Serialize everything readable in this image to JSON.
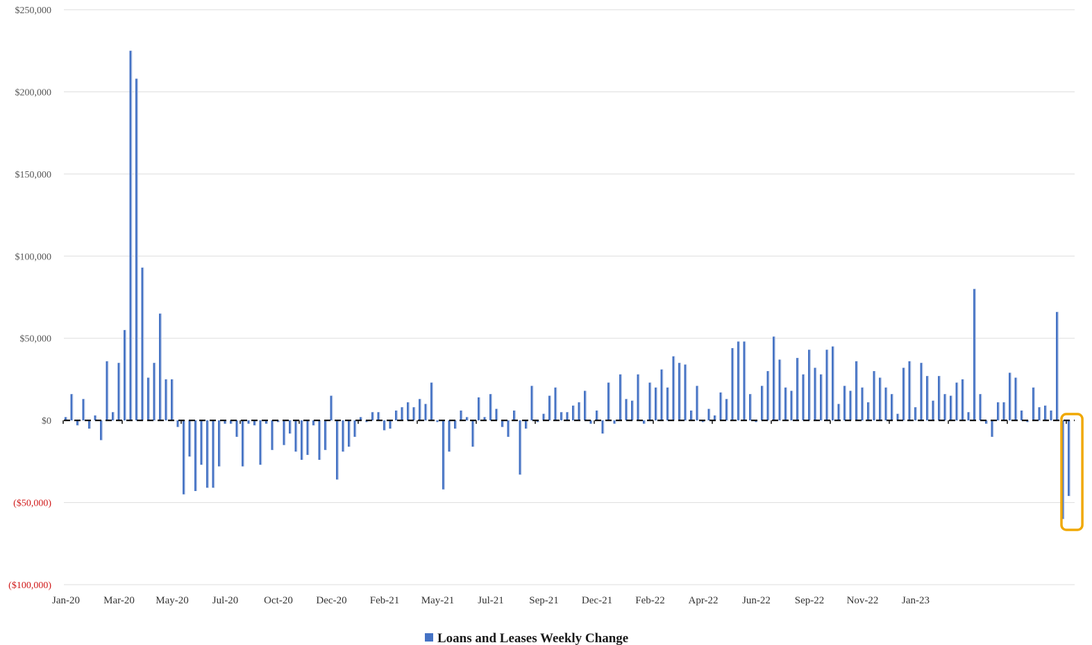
{
  "chart_data": {
    "type": "bar",
    "title": "",
    "xlabel": "",
    "ylabel": "",
    "ylim": [
      -100000,
      250000
    ],
    "y_ticks": [
      {
        "value": 250000,
        "label": "$250,000"
      },
      {
        "value": 200000,
        "label": "$200,000"
      },
      {
        "value": 150000,
        "label": "$150,000"
      },
      {
        "value": 100000,
        "label": "$100,000"
      },
      {
        "value": 50000,
        "label": "$50,000"
      },
      {
        "value": 0,
        "label": "$0"
      },
      {
        "value": -50000,
        "label": "($50,000)"
      },
      {
        "value": -100000,
        "label": "($100,000)"
      }
    ],
    "x_ticks": [
      {
        "index": 0,
        "label": "Jan-20"
      },
      {
        "index": 9,
        "label": "Mar-20"
      },
      {
        "index": 18,
        "label": "May-20"
      },
      {
        "index": 27,
        "label": "Jul-20"
      },
      {
        "index": 36,
        "label": "Oct-20"
      },
      {
        "index": 45,
        "label": "Dec-20"
      },
      {
        "index": 54,
        "label": "Feb-21"
      },
      {
        "index": 63,
        "label": "May-21"
      },
      {
        "index": 72,
        "label": "Jul-21"
      },
      {
        "index": 81,
        "label": "Sep-21"
      },
      {
        "index": 90,
        "label": "Dec-21"
      },
      {
        "index": 99,
        "label": "Feb-22"
      },
      {
        "index": 108,
        "label": "Apr-22"
      },
      {
        "index": 117,
        "label": "Jun-22"
      },
      {
        "index": 126,
        "label": "Sep-22"
      },
      {
        "index": 135,
        "label": "Nov-22"
      },
      {
        "index": 144,
        "label": "Jan-23"
      }
    ],
    "series": [
      {
        "name": "Loans and Leases Weekly Change",
        "color": "#4472c4",
        "values": [
          2000,
          16000,
          -3000,
          13000,
          -5000,
          3000,
          -12000,
          36000,
          5000,
          35000,
          55000,
          225000,
          208000,
          93000,
          26000,
          35000,
          65000,
          25000,
          25000,
          -4000,
          -45000,
          -22000,
          -43000,
          -27000,
          -41000,
          -41000,
          -28000,
          -2000,
          -2000,
          -10000,
          -28000,
          -2000,
          -3000,
          -27000,
          -2000,
          -18000,
          -1000,
          -15000,
          -8000,
          -19000,
          -24000,
          -21000,
          -3000,
          -24000,
          -18000,
          15000,
          -36000,
          -19000,
          -16000,
          -10000,
          2000,
          -1000,
          5000,
          5000,
          -6000,
          -5000,
          6000,
          8000,
          11000,
          8000,
          13000,
          10000,
          23000,
          -1000,
          -42000,
          -19000,
          -5000,
          6000,
          2000,
          -16000,
          14000,
          2000,
          16000,
          7000,
          -4000,
          -10000,
          6000,
          -33000,
          -5000,
          21000,
          -1000,
          4000,
          15000,
          20000,
          5000,
          5000,
          9000,
          11000,
          18000,
          -2000,
          6000,
          -8000,
          23000,
          -2000,
          28000,
          13000,
          12000,
          28000,
          -2000,
          23000,
          20000,
          31000,
          20000,
          39000,
          35000,
          34000,
          6000,
          21000,
          -1000,
          7000,
          3000,
          17000,
          13000,
          44000,
          48000,
          48000,
          16000,
          -1000,
          21000,
          30000,
          51000,
          37000,
          20000,
          18000,
          38000,
          28000,
          43000,
          32000,
          28000,
          43000,
          45000,
          10000,
          21000,
          18000,
          36000,
          20000,
          11000,
          30000,
          26000,
          20000,
          16000,
          4000,
          32000,
          36000,
          8000,
          35000,
          27000,
          12000,
          27000,
          16000,
          15000,
          23000,
          25000,
          5000,
          80000,
          16000,
          -2000,
          -10000,
          11000,
          11000,
          29000,
          26000,
          6000,
          -1000,
          20000,
          8000,
          9000,
          6000,
          66000,
          -60000,
          -46000
        ]
      }
    ],
    "highlight": {
      "from_index": 170,
      "to_index": 171,
      "color": "#f0a800"
    },
    "legend": {
      "position": "bottom-center",
      "entries": [
        "Loans and Leases Weekly Change"
      ]
    },
    "grid": true
  }
}
